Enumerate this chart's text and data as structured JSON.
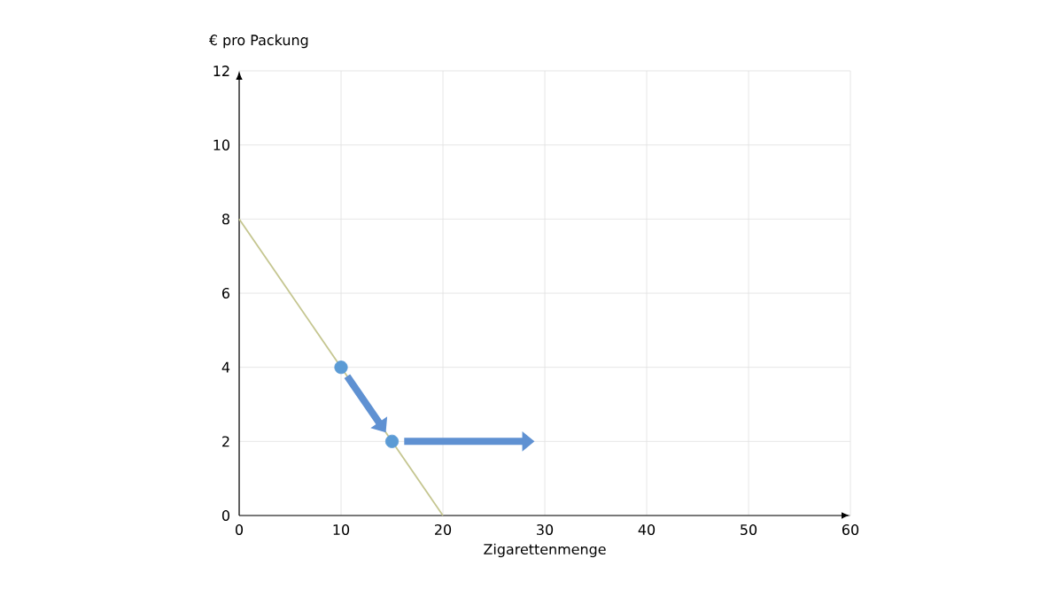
{
  "chart_data": {
    "type": "line",
    "xlabel": "Zigarettenmenge",
    "ylabel": "€ pro Packung",
    "xlim": [
      0,
      60
    ],
    "ylim": [
      0,
      12
    ],
    "xticks": [
      0,
      10,
      20,
      30,
      40,
      50,
      60
    ],
    "yticks": [
      0,
      2,
      4,
      6,
      8,
      10,
      12
    ],
    "grid": true,
    "series": [
      {
        "color": "#c5c690",
        "x": [
          0,
          20
        ],
        "values": [
          8,
          0
        ]
      },
      {
        "type": "scatter",
        "color": "#5b9bd5",
        "x": [
          10,
          15
        ],
        "values": [
          4,
          2
        ],
        "marker": "circle"
      }
    ]
  }
}
